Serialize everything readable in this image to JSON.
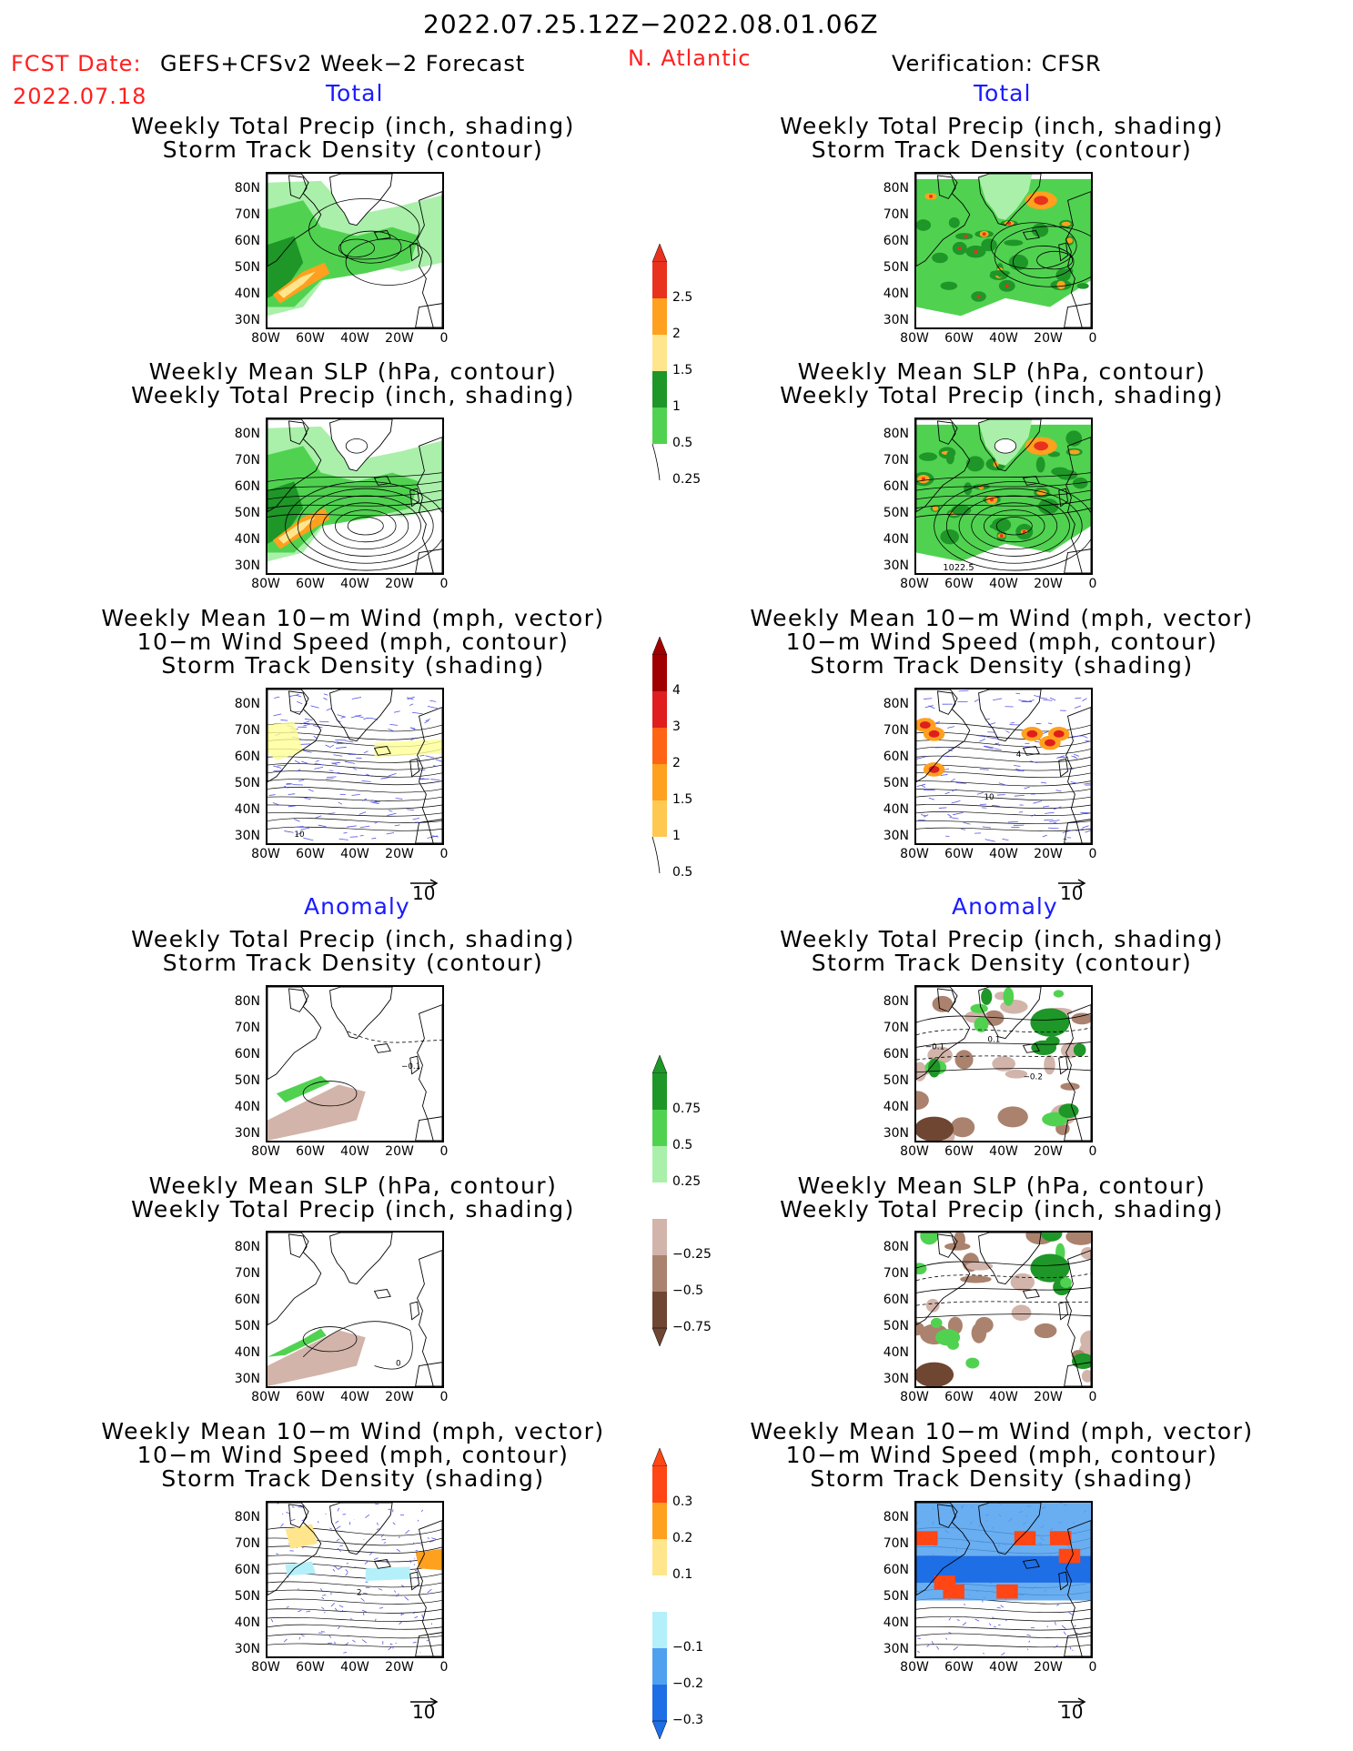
{
  "header": {
    "date_range": "2022.07.25.12Z−2022.08.01.06Z",
    "fcst_date_label": "FCST Date:",
    "fcst_product": "GEFS+CFSv2 Week−2 Forecast",
    "fcst_date": "2022.07.18",
    "region": "N. Atlantic",
    "verification": "Verification: CFSR"
  },
  "sections": {
    "total": "Total",
    "anomaly": "Anomaly"
  },
  "panel_titles": {
    "precip_storm": [
      "Weekly Total Precip (inch, shading)",
      "Storm Track Density (contour)"
    ],
    "slp_precip": [
      "Weekly Mean SLP (hPa, contour)",
      "Weekly Total Precip (inch, shading)"
    ],
    "wind": [
      "Weekly Mean 10−m Wind (mph, vector)",
      "10−m Wind Speed (mph, contour)",
      "Storm Track Density (shading)"
    ]
  },
  "axes": {
    "y_ticks": [
      "80N",
      "70N",
      "60N",
      "50N",
      "40N",
      "30N"
    ],
    "x_ticks": [
      "80W",
      "60W",
      "40W",
      "20W",
      "0"
    ]
  },
  "vector_ref": "10",
  "contour_labels": {
    "slp_cfsr": "1022.5",
    "wind_fcst": "10",
    "wind_cfsr_a": "10",
    "wind_cfsr_b": "4",
    "anom_precip_fcst": "−0.1",
    "anom_precip_cfsr_a": "−0.1",
    "anom_precip_cfsr_b": "0.1",
    "anom_precip_cfsr_c": "−0.2",
    "anom_slp_fcst": "0",
    "anom_wind_fcst": "2"
  },
  "colorbars": {
    "precip_total": {
      "labels": [
        "2.5",
        "2",
        "1.5",
        "1",
        "0.5",
        "0.25"
      ],
      "colors": [
        "#e8321e",
        "#ffa01e",
        "#ffe68c",
        "#1e9628",
        "#50d250",
        "#aaf0aa"
      ]
    },
    "storm_total": {
      "labels": [
        "4",
        "3",
        "2",
        "1.5",
        "1",
        "0.5"
      ],
      "colors": [
        "#a00000",
        "#e01e1e",
        "#ff6414",
        "#ffa01e",
        "#ffc850",
        "#ffff96"
      ]
    },
    "precip_anom": {
      "labels": [
        "0.75",
        "0.5",
        "0.25",
        "−0.25",
        "−0.5",
        "−0.75"
      ],
      "colors": [
        "#1e9628",
        "#50d250",
        "#aaf0aa",
        "#ffffff",
        "#d2b4aa",
        "#aa826e",
        "#6e4632"
      ]
    },
    "storm_anom": {
      "labels": [
        "0.3",
        "0.2",
        "0.1",
        "−0.1",
        "−0.2",
        "−0.3"
      ],
      "colors": [
        "#ff4614",
        "#ffa01e",
        "#ffe68c",
        "#ffffff",
        "#b4f0fa",
        "#50a0f0",
        "#1e6ee6"
      ]
    }
  },
  "chart_data": [
    {
      "type": "heatmap",
      "title": "Weekly Total Precip (inch, shading) / Storm Track Density (contour)",
      "section": "Total",
      "source": "GEFS+CFSv2",
      "xlim": [
        -80,
        0
      ],
      "ylim": [
        25,
        85
      ]
    },
    {
      "type": "heatmap",
      "title": "Weekly Total Precip (inch, shading) / Storm Track Density (contour)",
      "section": "Total",
      "source": "CFSR",
      "xlim": [
        -80,
        0
      ],
      "ylim": [
        25,
        85
      ]
    },
    {
      "type": "heatmap",
      "title": "Weekly Mean SLP (hPa, contour) / Weekly Total Precip (inch, shading)",
      "section": "Total",
      "source": "GEFS+CFSv2",
      "xlim": [
        -80,
        0
      ],
      "ylim": [
        25,
        85
      ]
    },
    {
      "type": "heatmap",
      "title": "Weekly Mean SLP (hPa, contour) / Weekly Total Precip (inch, shading)",
      "section": "Total",
      "source": "CFSR",
      "contour_labels": [
        "1022.5"
      ],
      "xlim": [
        -80,
        0
      ],
      "ylim": [
        25,
        85
      ]
    },
    {
      "type": "heatmap",
      "title": "Weekly Mean 10-m Wind / 10-m Wind Speed / Storm Track Density",
      "section": "Total",
      "source": "GEFS+CFSv2",
      "xlim": [
        -80,
        0
      ],
      "ylim": [
        25,
        85
      ]
    },
    {
      "type": "heatmap",
      "title": "Weekly Mean 10-m Wind / 10-m Wind Speed / Storm Track Density",
      "section": "Total",
      "source": "CFSR",
      "xlim": [
        -80,
        0
      ],
      "ylim": [
        25,
        85
      ]
    },
    {
      "type": "heatmap",
      "title": "Weekly Total Precip / Storm Track Density",
      "section": "Anomaly",
      "source": "GEFS+CFSv2",
      "xlim": [
        -80,
        0
      ],
      "ylim": [
        25,
        85
      ]
    },
    {
      "type": "heatmap",
      "title": "Weekly Total Precip / Storm Track Density",
      "section": "Anomaly",
      "source": "CFSR",
      "xlim": [
        -80,
        0
      ],
      "ylim": [
        25,
        85
      ]
    },
    {
      "type": "heatmap",
      "title": "Weekly Mean SLP / Weekly Total Precip",
      "section": "Anomaly",
      "source": "GEFS+CFSv2",
      "xlim": [
        -80,
        0
      ],
      "ylim": [
        25,
        85
      ]
    },
    {
      "type": "heatmap",
      "title": "Weekly Mean SLP / Weekly Total Precip",
      "section": "Anomaly",
      "source": "CFSR",
      "xlim": [
        -80,
        0
      ],
      "ylim": [
        25,
        85
      ]
    },
    {
      "type": "heatmap",
      "title": "Weekly Mean 10-m Wind / 10-m Wind Speed / Storm Track Density",
      "section": "Anomaly",
      "source": "GEFS+CFSv2",
      "xlim": [
        -80,
        0
      ],
      "ylim": [
        25,
        85
      ]
    },
    {
      "type": "heatmap",
      "title": "Weekly Mean 10-m Wind / 10-m Wind Speed / Storm Track Density",
      "section": "Anomaly",
      "source": "CFSR",
      "xlim": [
        -80,
        0
      ],
      "ylim": [
        25,
        85
      ]
    }
  ]
}
